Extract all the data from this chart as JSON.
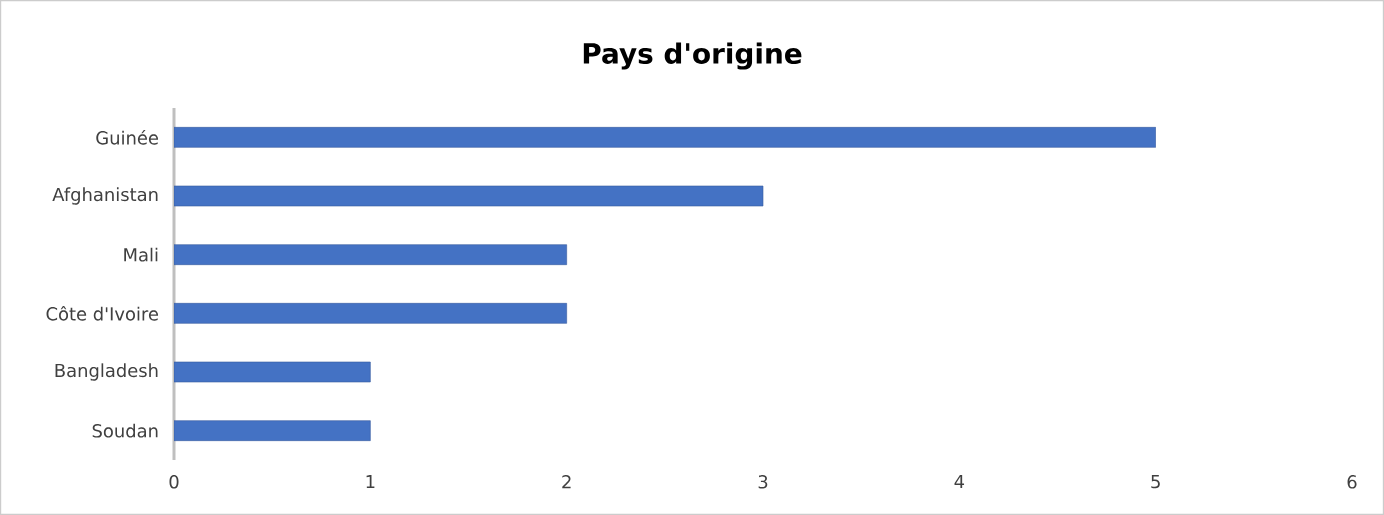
{
  "chart_data": {
    "type": "bar",
    "orientation": "horizontal",
    "title": "Pays d'origine",
    "categories": [
      "Guinée",
      "Afghanistan",
      "Mali",
      "Côte d'Ivoire",
      "Bangladesh",
      "Soudan"
    ],
    "values": [
      5,
      3,
      2,
      2,
      1,
      1
    ],
    "color": "#4472c4",
    "xlim": [
      0,
      6
    ],
    "xticks": [
      0,
      1,
      2,
      3,
      4,
      5,
      6
    ],
    "grid": false
  }
}
